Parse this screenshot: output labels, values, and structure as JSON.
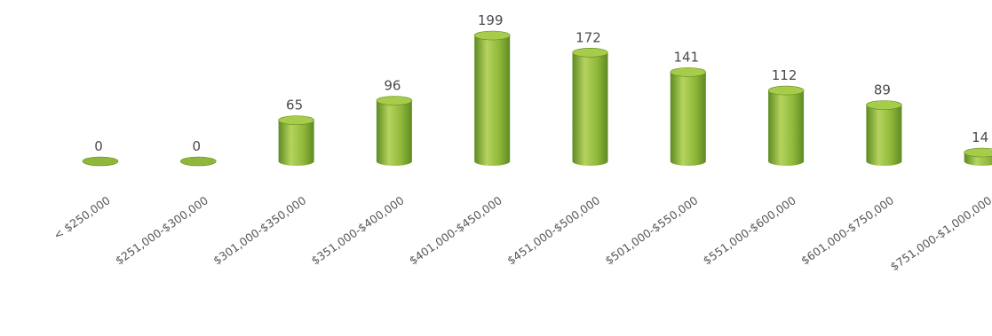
{
  "chart_data": {
    "type": "bar",
    "categories": [
      "< $250,000",
      "$251,000-$300,000",
      "$301,000-$350,000",
      "$351,000-$400,000",
      "$401,000-$450,000",
      "$451,000-$500,000",
      "$501,000-$550,000",
      "$551,000-$600,000",
      "$601,000-$750,000",
      "$751,000-$1,000,000"
    ],
    "values": [
      0,
      0,
      65,
      96,
      199,
      172,
      141,
      112,
      89,
      14
    ],
    "title": "",
    "xlabel": "",
    "ylabel": "",
    "ylim": [
      0,
      199
    ],
    "grid": false,
    "legend": "none",
    "style": "3d-cylinder",
    "colors": {
      "bar_light": "#b5d35e",
      "bar_mid": "#8fb83a",
      "bar_dark": "#5e8a22",
      "bar_top": "#a6cc4a",
      "value_text": "#4a4a4a",
      "tick_text": "#555555"
    }
  }
}
